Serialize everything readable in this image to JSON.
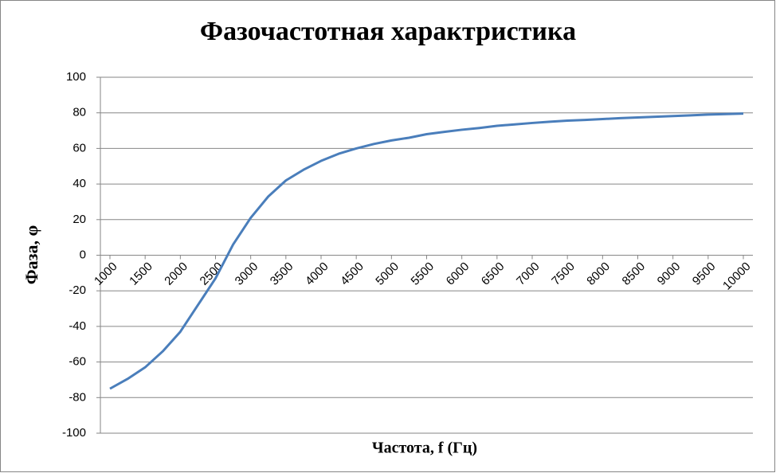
{
  "chart_data": {
    "type": "line",
    "title": "Фазочастотная характристика",
    "x_label": "Частота, f (Гц)",
    "y_label": "Фаза, φ",
    "x": [
      1000,
      1250,
      1500,
      1750,
      2000,
      2250,
      2500,
      2750,
      3000,
      3250,
      3500,
      3750,
      4000,
      4250,
      4500,
      4750,
      5000,
      5250,
      5500,
      5750,
      6000,
      6250,
      6500,
      6750,
      7000,
      7250,
      7500,
      7750,
      8000,
      8250,
      8500,
      8750,
      9000,
      9250,
      9500,
      9750,
      10000
    ],
    "series": [
      {
        "name": "Фаза",
        "color": "#4a7ebb",
        "values": [
          -75,
          -69.5,
          -63,
          -54,
          -43,
          -28,
          -13,
          6,
          21,
          33,
          42,
          48,
          53,
          57,
          60,
          62.5,
          64.5,
          66,
          68,
          69.3,
          70.5,
          71.5,
          72.7,
          73.5,
          74.3,
          75,
          75.6,
          76,
          76.5,
          77,
          77.4,
          77.8,
          78.2,
          78.6,
          79,
          79.3,
          79.6
        ]
      }
    ],
    "xlim": [
      1000,
      10000
    ],
    "xticks": [
      1000,
      1500,
      2000,
      2500,
      3000,
      3500,
      4000,
      4500,
      5000,
      5500,
      6000,
      6500,
      7000,
      7500,
      8000,
      8500,
      9000,
      9500,
      10000
    ],
    "ylim": [
      -100,
      100
    ],
    "yticks": [
      -100,
      -80,
      -60,
      -40,
      -20,
      0,
      20,
      40,
      60,
      80,
      100
    ],
    "grid": true
  }
}
